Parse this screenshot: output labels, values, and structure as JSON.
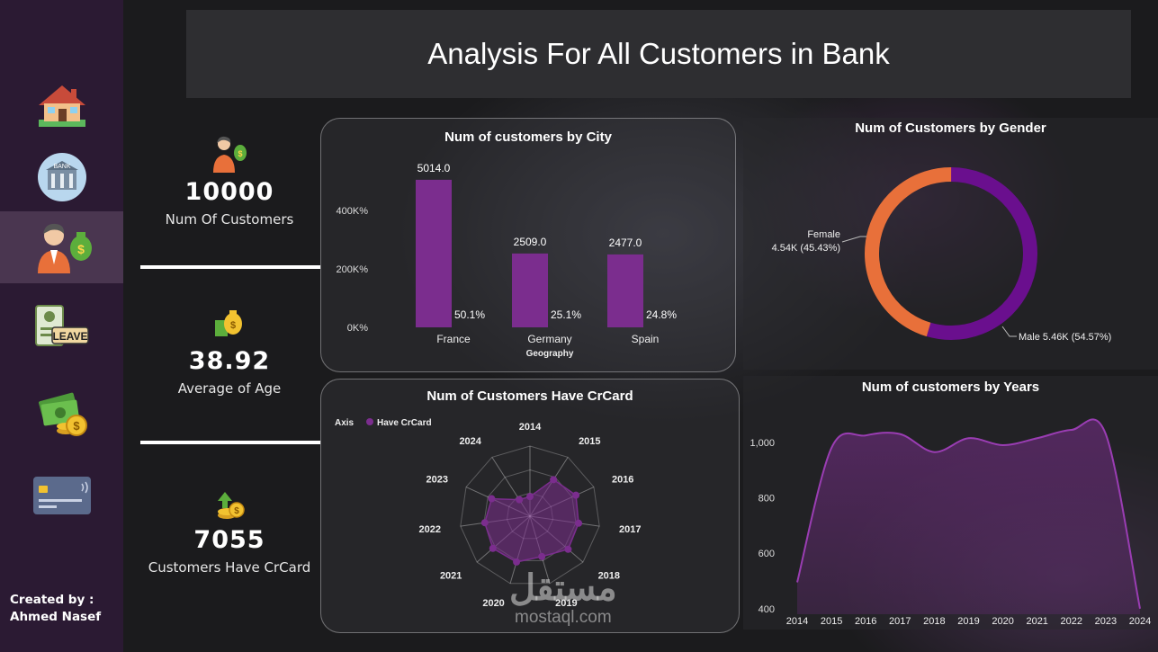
{
  "title": "Analysis For All Customers in Bank",
  "sidebar": {
    "items": [
      {
        "name": "home"
      },
      {
        "name": "bank"
      },
      {
        "name": "customers",
        "active": true
      },
      {
        "name": "leave"
      },
      {
        "name": "money"
      },
      {
        "name": "credit-card"
      }
    ],
    "credit_line1": "Created by :",
    "credit_line2": "Ahmed Nasef",
    "bank_sign": "BANK",
    "leave_sign": "LEAVE"
  },
  "kpis": {
    "customers": {
      "value": "10000",
      "label": "Num Of Customers"
    },
    "age": {
      "value": "38.92",
      "label": "Average of Age"
    },
    "crcard": {
      "value": "7055",
      "label": "Customers Have CrCard"
    }
  },
  "watermark": {
    "arabic": "مستقل",
    "latin": "mostaql.com"
  },
  "colors": {
    "purple": "#7b2d8e",
    "orange": "#e8703a",
    "dark_purple": "#6a0f8e"
  },
  "chart_data": [
    {
      "type": "bar",
      "title": "Num of customers by City",
      "categories": [
        "France",
        "Germany",
        "Spain"
      ],
      "values": [
        5014.0,
        2509.0,
        2477.0
      ],
      "value_labels": [
        "5014.0",
        "2509.0",
        "2477.0"
      ],
      "percent_labels": [
        "50.1%",
        "25.1%",
        "24.8%"
      ],
      "xlabel": "Geography",
      "ytick_labels": [
        "0K%",
        "200K%",
        "400K%"
      ],
      "ylim": [
        0,
        5500
      ]
    },
    {
      "type": "pie",
      "title": "Num of Customers by Gender",
      "categories": [
        "Female",
        "Male"
      ],
      "values": [
        4543,
        5457
      ],
      "labels": {
        "female_name": "Female",
        "female_value": "4.54K (45.43%)",
        "male": "Male 5.46K (54.57%)"
      }
    },
    {
      "type": "radar",
      "title": "Num of Customers Have CrCard",
      "legend_axis": "Axis",
      "legend_series": "Have CrCard",
      "categories": [
        "2014",
        "2015",
        "2016",
        "2017",
        "2018",
        "2019",
        "2020",
        "2021",
        "2022",
        "2023",
        "2024"
      ],
      "values": [
        0.28,
        0.62,
        0.72,
        0.7,
        0.72,
        0.6,
        0.68,
        0.7,
        0.65,
        0.6,
        0.28
      ]
    },
    {
      "type": "area",
      "title": "Num of customers by Years",
      "x": [
        "2014",
        "2015",
        "2016",
        "2017",
        "2018",
        "2019",
        "2020",
        "2021",
        "2022",
        "2023",
        "2024"
      ],
      "values": [
        495,
        980,
        1025,
        1030,
        965,
        1015,
        990,
        1015,
        1045,
        1030,
        400
      ],
      "ytick_labels": [
        "400",
        "600",
        "800",
        "1,000"
      ],
      "ylim": [
        380,
        1110
      ]
    }
  ]
}
